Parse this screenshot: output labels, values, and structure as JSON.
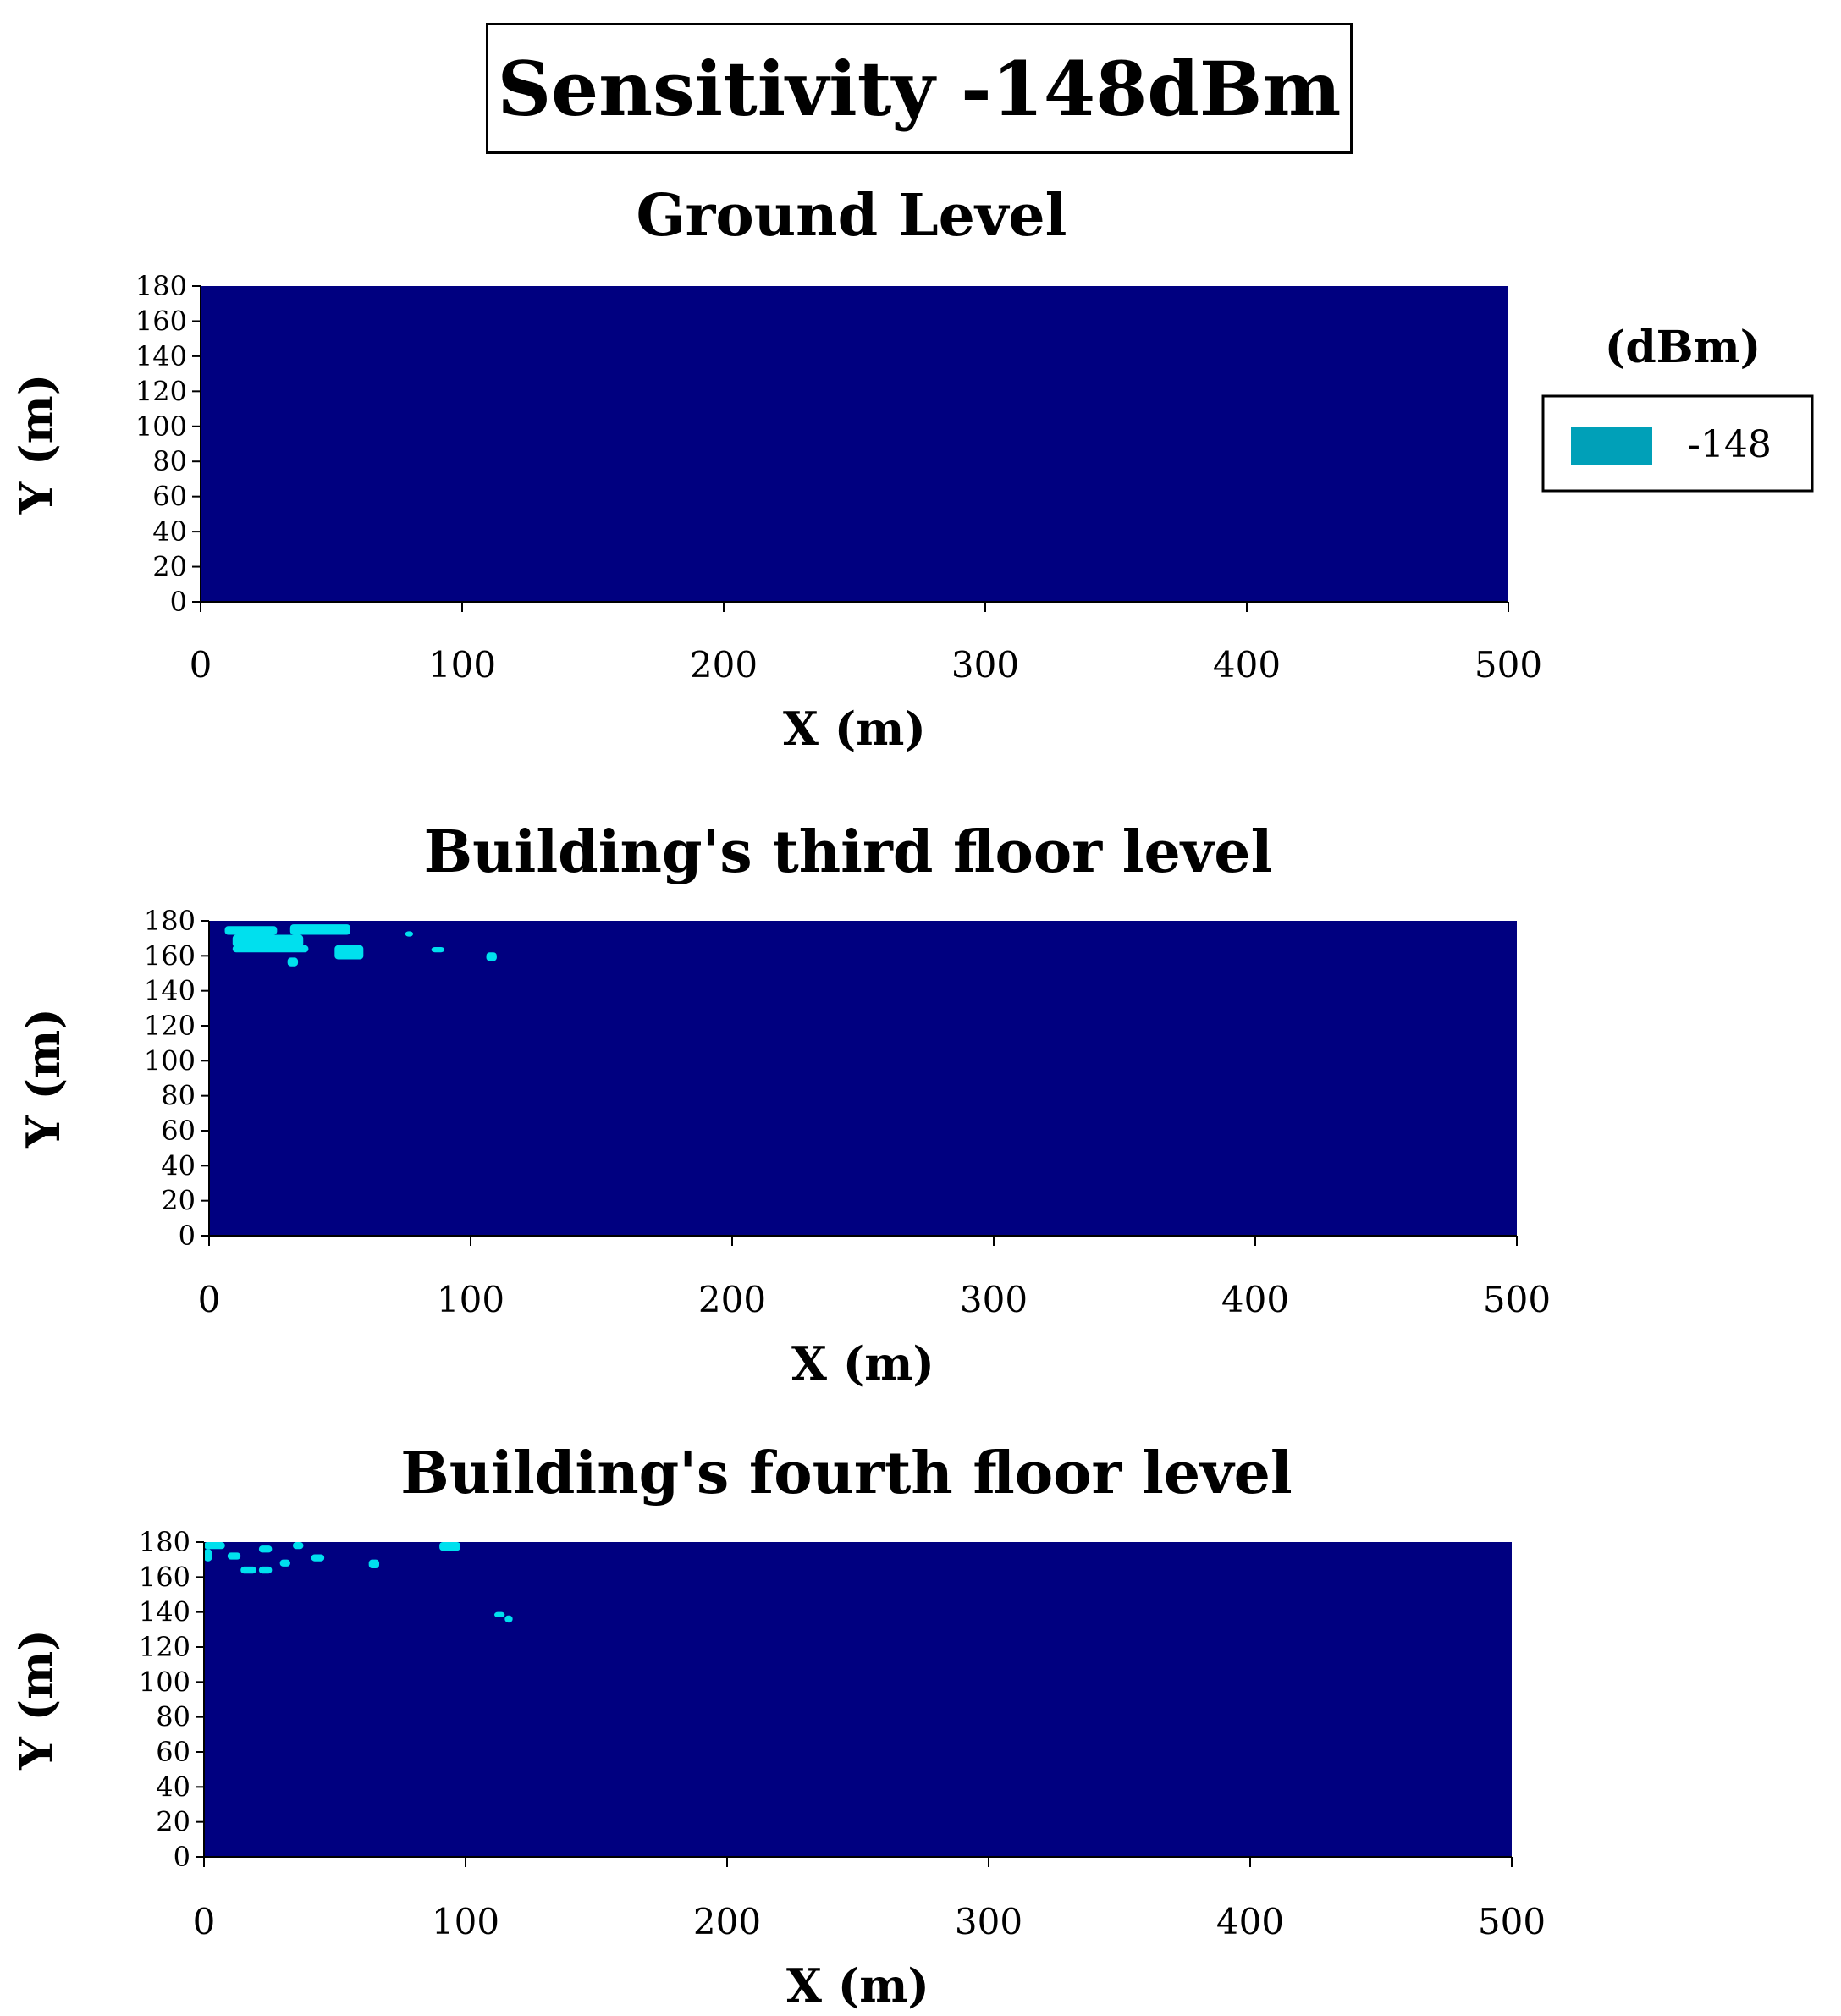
{
  "title": "Sensitivity -148dBm",
  "legend": {
    "title": "(dBm)",
    "items": [
      {
        "label": "-148",
        "color": "#00A0B8"
      }
    ]
  },
  "colors": {
    "background_region": "#000080",
    "covered_region": "#00E0EE",
    "axis": "#000000"
  },
  "chart_data": [
    {
      "type": "heatmap",
      "title": "Ground Level",
      "xlabel": "X (m)",
      "ylabel": "Y (m)",
      "xlim": [
        0,
        500
      ],
      "ylim": [
        0,
        180
      ],
      "xticks": [
        0,
        100,
        200,
        300,
        400,
        500
      ],
      "yticks": [
        0,
        20,
        40,
        60,
        80,
        100,
        120,
        140,
        160,
        180
      ],
      "regions": []
    },
    {
      "type": "heatmap",
      "title": "Building's third floor level",
      "xlabel": "X (m)",
      "ylabel": "Y (m)",
      "xlim": [
        0,
        500
      ],
      "ylim": [
        0,
        180
      ],
      "xticks": [
        0,
        100,
        200,
        300,
        400,
        500
      ],
      "yticks": [
        0,
        20,
        40,
        60,
        80,
        100,
        120,
        140,
        160,
        180
      ],
      "regions": [
        {
          "x": [
            6,
            26
          ],
          "y": [
            172,
            177
          ]
        },
        {
          "x": [
            31,
            54
          ],
          "y": [
            172,
            178
          ]
        },
        {
          "x": [
            9,
            36
          ],
          "y": [
            165,
            172
          ]
        },
        {
          "x": [
            9,
            38
          ],
          "y": [
            162,
            166
          ]
        },
        {
          "x": [
            48,
            59
          ],
          "y": [
            158,
            166
          ]
        },
        {
          "x": [
            30,
            34
          ],
          "y": [
            154,
            159
          ]
        },
        {
          "x": [
            75,
            78
          ],
          "y": [
            171,
            174
          ]
        },
        {
          "x": [
            85,
            90
          ],
          "y": [
            162,
            165
          ]
        },
        {
          "x": [
            106,
            110
          ],
          "y": [
            157,
            162
          ]
        }
      ]
    },
    {
      "type": "heatmap",
      "title": "Building's fourth floor level",
      "xlabel": "X (m)",
      "ylabel": "Y (m)",
      "xlim": [
        0,
        500
      ],
      "ylim": [
        0,
        180
      ],
      "xticks": [
        0,
        100,
        200,
        300,
        400,
        500
      ],
      "yticks": [
        0,
        20,
        40,
        60,
        80,
        100,
        120,
        140,
        160,
        180
      ],
      "regions": [
        {
          "x": [
            0,
            8
          ],
          "y": [
            176,
            180
          ]
        },
        {
          "x": [
            0,
            3
          ],
          "y": [
            169,
            176
          ]
        },
        {
          "x": [
            9,
            14
          ],
          "y": [
            170,
            174
          ]
        },
        {
          "x": [
            21,
            26
          ],
          "y": [
            174,
            178
          ]
        },
        {
          "x": [
            34,
            38
          ],
          "y": [
            176,
            180
          ]
        },
        {
          "x": [
            14,
            20
          ],
          "y": [
            162,
            166
          ]
        },
        {
          "x": [
            21,
            26
          ],
          "y": [
            162,
            166
          ]
        },
        {
          "x": [
            29,
            33
          ],
          "y": [
            166,
            170
          ]
        },
        {
          "x": [
            41,
            46
          ],
          "y": [
            169,
            173
          ]
        },
        {
          "x": [
            63,
            67
          ],
          "y": [
            165,
            170
          ]
        },
        {
          "x": [
            90,
            98
          ],
          "y": [
            175,
            180
          ]
        },
        {
          "x": [
            111,
            115
          ],
          "y": [
            137,
            140
          ]
        },
        {
          "x": [
            115,
            118
          ],
          "y": [
            134,
            138
          ]
        }
      ]
    }
  ]
}
